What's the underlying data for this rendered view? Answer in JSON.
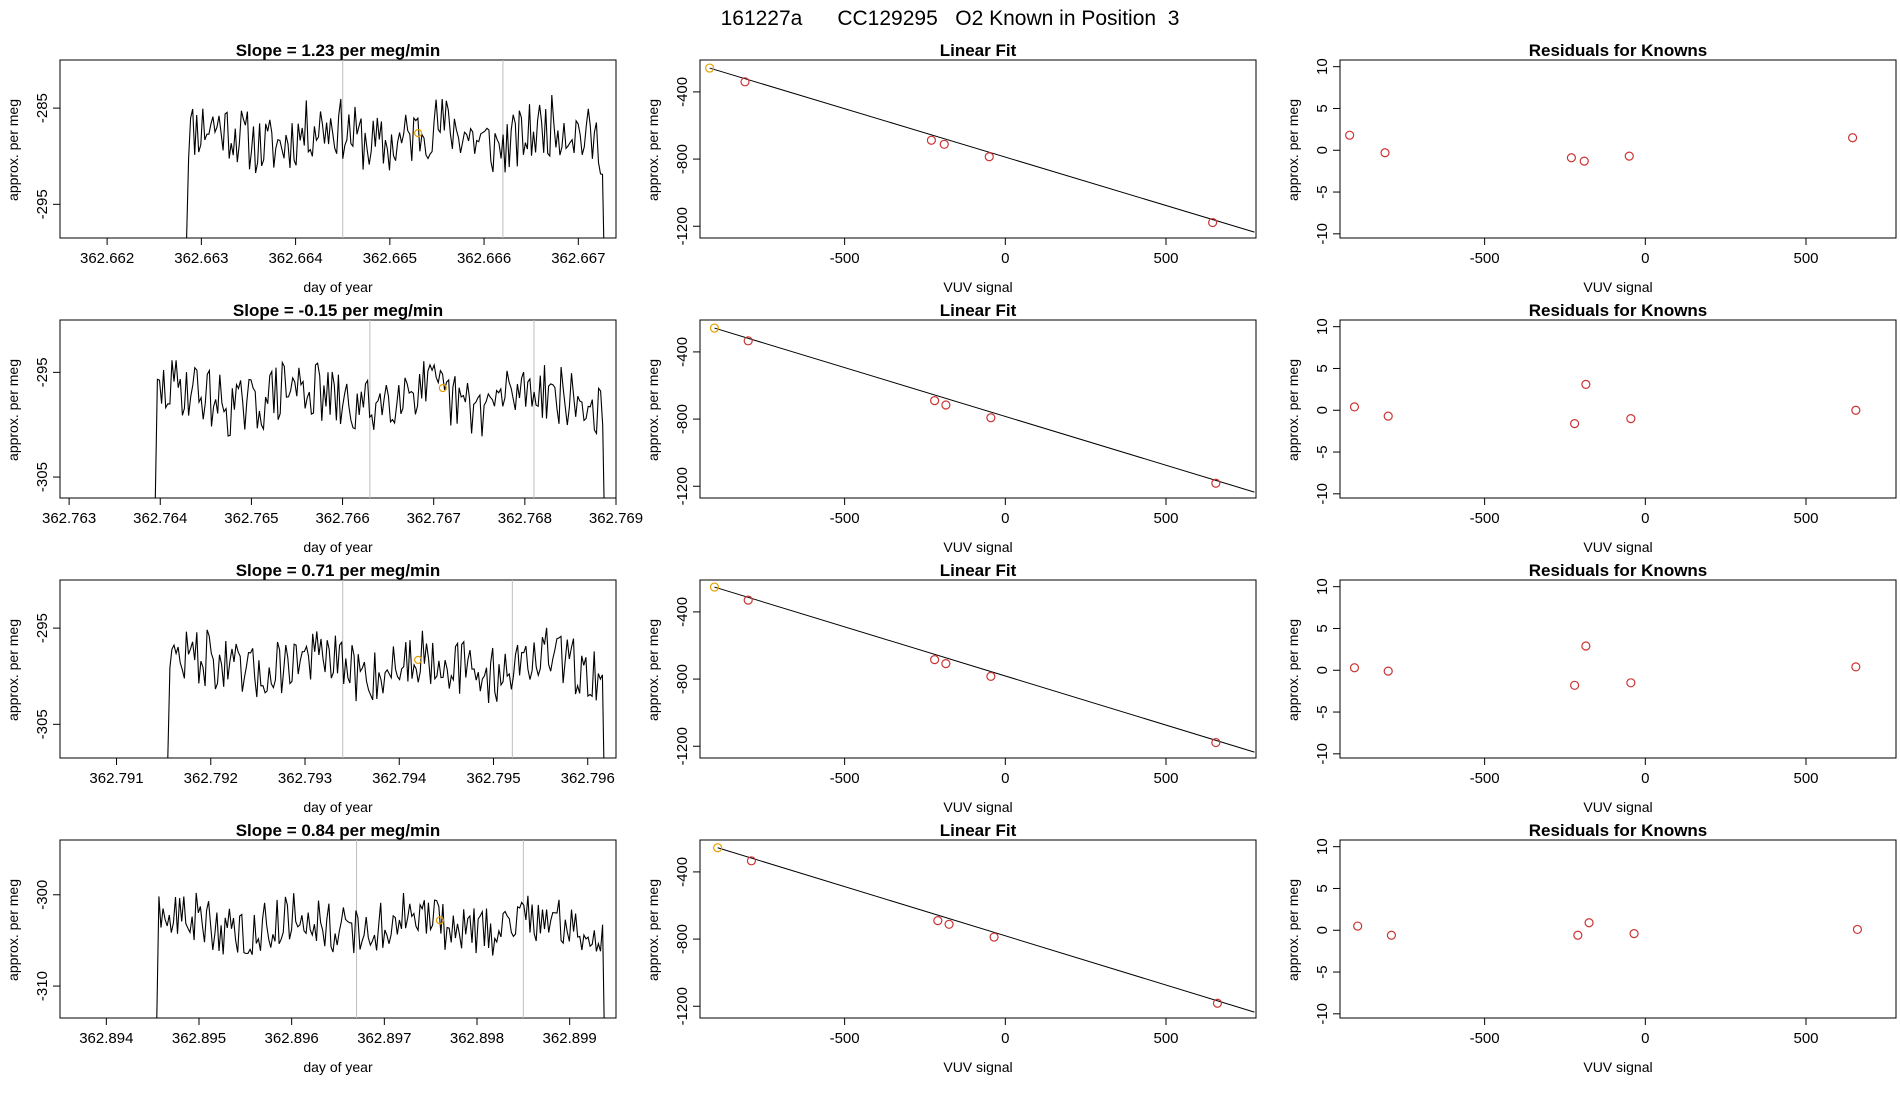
{
  "page_title": "161227a      CC129295   O2 Known in Position  3",
  "colors": {
    "line": "#000000",
    "frame": "#000000",
    "vline": "#bdbdbd",
    "known_open": "#cd3333",
    "highlight": "#e69f00"
  },
  "rows": [
    {
      "slope_title": "Slope =  1.23  per meg/min",
      "ts_xlabel": "day of year",
      "ts_ylabel": "approx. per meg",
      "fit_title": "Linear Fit",
      "fit_xlabel": "VUV signal",
      "fit_ylabel": "approx. per meg",
      "res_title": "Residuals for Knowns",
      "res_xlabel": "VUV signal",
      "res_ylabel": "approx. per meg"
    },
    {
      "slope_title": "Slope =  -0.15  per meg/min",
      "ts_xlabel": "day of year",
      "ts_ylabel": "approx. per meg",
      "fit_title": "Linear Fit",
      "fit_xlabel": "VUV signal",
      "fit_ylabel": "approx. per meg",
      "res_title": "Residuals for Knowns",
      "res_xlabel": "VUV signal",
      "res_ylabel": "approx. per meg"
    },
    {
      "slope_title": "Slope =  0.71  per meg/min",
      "ts_xlabel": "day of year",
      "ts_ylabel": "approx. per meg",
      "fit_title": "Linear Fit",
      "fit_xlabel": "VUV signal",
      "fit_ylabel": "approx. per meg",
      "res_title": "Residuals for Knowns",
      "res_xlabel": "VUV signal",
      "res_ylabel": "approx. per meg"
    },
    {
      "slope_title": "Slope =  0.84  per meg/min",
      "ts_xlabel": "day of year",
      "ts_ylabel": "approx. per meg",
      "fit_title": "Linear Fit",
      "fit_xlabel": "VUV signal",
      "fit_ylabel": "approx. per meg",
      "res_title": "Residuals for Knowns",
      "res_xlabel": "VUV signal",
      "res_ylabel": "approx. per meg"
    }
  ],
  "chart_data": [
    {
      "type": "line",
      "title": "Slope =  1.23  per meg/min",
      "xlabel": "day of year",
      "ylabel": "approx. per meg",
      "xlim": [
        362.6615,
        362.6674
      ],
      "ylim": [
        -298.5,
        -280.0
      ],
      "xticks": [
        362.662,
        362.663,
        362.664,
        362.665,
        362.666,
        362.667
      ],
      "yticks": [
        -295,
        -285
      ],
      "x_start": 362.6628,
      "x_end": 362.6673,
      "n": 210,
      "y_mean": -287.9,
      "y_amp": 3.2,
      "seed": 11,
      "vlines": [
        362.6645,
        362.6662
      ],
      "highlight": [
        362.6653,
        -287.6
      ]
    },
    {
      "type": "scatter",
      "title": "Linear Fit",
      "xlabel": "VUV signal",
      "ylabel": "approx. per meg",
      "xlim": [
        -950,
        780
      ],
      "ylim": [
        -1270,
        -210
      ],
      "xticks": [
        -500,
        0,
        500
      ],
      "yticks": [
        -1200,
        -800,
        -400
      ],
      "points": [
        {
          "x": -920,
          "y": -258,
          "highlight": true
        },
        {
          "x": -810,
          "y": -340
        },
        {
          "x": -230,
          "y": -688
        },
        {
          "x": -190,
          "y": -712
        },
        {
          "x": -50,
          "y": -786
        },
        {
          "x": 645,
          "y": -1178
        }
      ],
      "fit_line": {
        "x": [
          -920,
          775
        ],
        "y": [
          -258,
          -1235
        ]
      }
    },
    {
      "type": "scatter",
      "title": "Residuals for Knowns",
      "xlabel": "VUV signal",
      "ylabel": "approx. per meg",
      "xlim": [
        -950,
        780
      ],
      "ylim": [
        -10.5,
        10.8
      ],
      "xticks": [
        -500,
        0,
        500
      ],
      "yticks": [
        -10,
        -5,
        0,
        5,
        10
      ],
      "points": [
        {
          "x": -920,
          "y": 1.8
        },
        {
          "x": -810,
          "y": -0.3
        },
        {
          "x": -230,
          "y": -0.9
        },
        {
          "x": -190,
          "y": -1.3
        },
        {
          "x": -50,
          "y": -0.7
        },
        {
          "x": 645,
          "y": 1.5
        }
      ]
    },
    {
      "type": "line",
      "title": "Slope =  -0.15  per meg/min",
      "xlabel": "day of year",
      "ylabel": "approx. per meg",
      "xlim": [
        362.7629,
        362.769
      ],
      "ylim": [
        -307.0,
        -290.0
      ],
      "xticks": [
        362.763,
        362.764,
        362.765,
        362.766,
        362.767,
        362.768,
        362.769
      ],
      "yticks": [
        -305,
        -295
      ],
      "x_start": 362.7639,
      "x_end": 362.7689,
      "n": 220,
      "y_mean": -297.4,
      "y_amp": 2.9,
      "seed": 29,
      "vlines": [
        362.7663,
        362.7681
      ],
      "highlight": [
        362.7671,
        -296.5
      ]
    },
    {
      "type": "scatter",
      "title": "Linear Fit",
      "xlabel": "VUV signal",
      "ylabel": "approx. per meg",
      "xlim": [
        -950,
        780
      ],
      "ylim": [
        -1270,
        -210
      ],
      "xticks": [
        -500,
        0,
        500
      ],
      "yticks": [
        -1200,
        -800,
        -400
      ],
      "points": [
        {
          "x": -905,
          "y": -258,
          "highlight": true
        },
        {
          "x": -800,
          "y": -334
        },
        {
          "x": -220,
          "y": -690
        },
        {
          "x": -185,
          "y": -716
        },
        {
          "x": -45,
          "y": -792
        },
        {
          "x": 655,
          "y": -1182
        }
      ],
      "fit_line": {
        "x": [
          -905,
          775
        ],
        "y": [
          -258,
          -1235
        ]
      }
    },
    {
      "type": "scatter",
      "title": "Residuals for Knowns",
      "xlabel": "VUV signal",
      "ylabel": "approx. per meg",
      "xlim": [
        -950,
        780
      ],
      "ylim": [
        -10.5,
        10.8
      ],
      "xticks": [
        -500,
        0,
        500
      ],
      "yticks": [
        -10,
        -5,
        0,
        5,
        10
      ],
      "points": [
        {
          "x": -905,
          "y": 0.4
        },
        {
          "x": -800,
          "y": -0.7
        },
        {
          "x": -220,
          "y": -1.6
        },
        {
          "x": -185,
          "y": 3.1
        },
        {
          "x": -45,
          "y": -1.0
        },
        {
          "x": 655,
          "y": 0.0
        }
      ]
    },
    {
      "type": "line",
      "title": "Slope =  0.71  per meg/min",
      "xlabel": "day of year",
      "ylabel": "approx. per meg",
      "xlim": [
        362.7904,
        362.7963
      ],
      "ylim": [
        -308.5,
        -290.0
      ],
      "xticks": [
        362.791,
        362.792,
        362.793,
        362.794,
        362.795,
        362.796
      ],
      "yticks": [
        -305,
        -295
      ],
      "x_start": 362.7915,
      "x_end": 362.7962,
      "n": 215,
      "y_mean": -298.9,
      "y_amp": 3.0,
      "seed": 47,
      "vlines": [
        362.7934,
        362.7952
      ],
      "highlight": [
        362.7942,
        -298.3
      ]
    },
    {
      "type": "scatter",
      "title": "Linear Fit",
      "xlabel": "VUV signal",
      "ylabel": "approx. per meg",
      "xlim": [
        -950,
        780
      ],
      "ylim": [
        -1270,
        -210
      ],
      "xticks": [
        -500,
        0,
        500
      ],
      "yticks": [
        -1200,
        -800,
        -400
      ],
      "points": [
        {
          "x": -905,
          "y": -252,
          "highlight": true
        },
        {
          "x": -800,
          "y": -330
        },
        {
          "x": -220,
          "y": -684
        },
        {
          "x": -185,
          "y": -708
        },
        {
          "x": -45,
          "y": -784
        },
        {
          "x": 655,
          "y": -1178
        }
      ],
      "fit_line": {
        "x": [
          -905,
          775
        ],
        "y": [
          -252,
          -1235
        ]
      }
    },
    {
      "type": "scatter",
      "title": "Residuals for Knowns",
      "xlabel": "VUV signal",
      "ylabel": "approx. per meg",
      "xlim": [
        -950,
        780
      ],
      "ylim": [
        -10.5,
        10.8
      ],
      "xticks": [
        -500,
        0,
        500
      ],
      "yticks": [
        -10,
        -5,
        0,
        5,
        10
      ],
      "points": [
        {
          "x": -905,
          "y": 0.3
        },
        {
          "x": -800,
          "y": -0.1
        },
        {
          "x": -220,
          "y": -1.8
        },
        {
          "x": -185,
          "y": 2.9
        },
        {
          "x": -45,
          "y": -1.5
        },
        {
          "x": 655,
          "y": 0.4
        }
      ]
    },
    {
      "type": "line",
      "title": "Slope =  0.84  per meg/min",
      "xlabel": "day of year",
      "ylabel": "approx. per meg",
      "xlim": [
        362.8935,
        362.8995
      ],
      "ylim": [
        -313.5,
        -294.0
      ],
      "xticks": [
        362.894,
        362.895,
        362.896,
        362.897,
        362.898,
        362.899
      ],
      "yticks": [
        -310,
        -300
      ],
      "x_start": 362.8945,
      "x_end": 362.8994,
      "n": 220,
      "y_mean": -303.3,
      "y_amp": 2.8,
      "seed": 63,
      "vlines": [
        362.8967,
        362.8985
      ],
      "highlight": [
        362.8976,
        -302.8
      ]
    },
    {
      "type": "scatter",
      "title": "Linear Fit",
      "xlabel": "VUV signal",
      "ylabel": "approx. per meg",
      "xlim": [
        -950,
        780
      ],
      "ylim": [
        -1270,
        -210
      ],
      "xticks": [
        -500,
        0,
        500
      ],
      "yticks": [
        -1200,
        -800,
        -400
      ],
      "points": [
        {
          "x": -895,
          "y": -256,
          "highlight": true
        },
        {
          "x": -790,
          "y": -334
        },
        {
          "x": -210,
          "y": -690
        },
        {
          "x": -175,
          "y": -712
        },
        {
          "x": -35,
          "y": -788
        },
        {
          "x": 660,
          "y": -1182
        }
      ],
      "fit_line": {
        "x": [
          -895,
          775
        ],
        "y": [
          -256,
          -1235
        ]
      }
    },
    {
      "type": "scatter",
      "title": "Residuals for Knowns",
      "xlabel": "VUV signal",
      "ylabel": "approx. per meg",
      "xlim": [
        -950,
        780
      ],
      "ylim": [
        -10.5,
        10.8
      ],
      "xticks": [
        -500,
        0,
        500
      ],
      "yticks": [
        -10,
        -5,
        0,
        5,
        10
      ],
      "points": [
        {
          "x": -895,
          "y": 0.5
        },
        {
          "x": -790,
          "y": -0.6
        },
        {
          "x": -210,
          "y": -0.6
        },
        {
          "x": -175,
          "y": 0.9
        },
        {
          "x": -35,
          "y": -0.4
        },
        {
          "x": 660,
          "y": 0.1
        }
      ]
    }
  ]
}
